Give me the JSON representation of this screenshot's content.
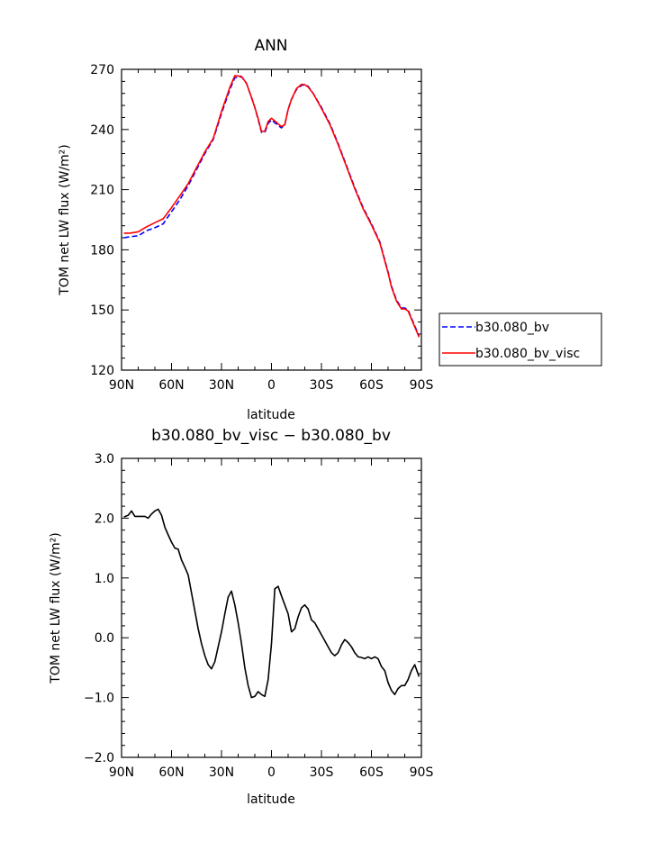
{
  "chart_data": [
    {
      "type": "line",
      "title": "ANN",
      "xlabel": "latitude",
      "ylabel": "TOM net LW flux (W/m²)",
      "ylim": [
        120,
        270
      ],
      "yticks": [
        "120",
        "150",
        "180",
        "210",
        "240",
        "270"
      ],
      "xlim": [
        90,
        -90
      ],
      "xtick_values": [
        90,
        60,
        30,
        0,
        -30,
        -60,
        -90
      ],
      "xtick_labels": [
        "90N",
        "60N",
        "30N",
        "0",
        "30S",
        "60S",
        "90S"
      ],
      "legend_position": "right",
      "series": [
        {
          "name": "b30.080_bv",
          "color": "#0000ff",
          "dash": "dashed",
          "x": [
            88.6,
            85,
            80,
            75,
            70,
            65,
            60,
            55,
            50,
            45,
            40,
            35,
            30,
            25,
            22,
            18,
            15,
            12,
            10,
            8,
            6,
            4,
            2,
            0,
            -2,
            -4,
            -6,
            -8,
            -10,
            -12,
            -15,
            -18,
            -20,
            -22,
            -25,
            -30,
            -35,
            -40,
            -45,
            -50,
            -55,
            -60,
            -65,
            -70,
            -72,
            -75,
            -78,
            -80,
            -82,
            -85,
            -88.6
          ],
          "y": [
            186,
            186.5,
            187,
            189.5,
            191,
            193,
            199,
            205,
            212,
            220,
            228,
            235,
            248,
            260,
            265.8,
            266.3,
            263,
            256,
            251,
            245,
            238.6,
            238.5,
            243,
            244.8,
            243.4,
            242,
            240.8,
            242.5,
            250,
            255,
            260,
            262,
            262.3,
            261.5,
            258,
            251,
            243,
            233,
            222,
            211,
            201,
            193,
            184,
            169,
            162,
            155,
            151,
            151,
            150,
            144,
            137
          ]
        },
        {
          "name": "b30.080_bv_visc",
          "color": "#ff0000",
          "dash": "solid",
          "x": [
            88.6,
            85,
            80,
            75,
            70,
            65,
            60,
            55,
            50,
            45,
            40,
            35,
            30,
            25,
            22,
            18,
            15,
            12,
            10,
            8,
            6,
            4,
            2,
            0,
            -2,
            -4,
            -6,
            -8,
            -10,
            -12,
            -15,
            -18,
            -20,
            -22,
            -25,
            -30,
            -35,
            -40,
            -45,
            -50,
            -55,
            -60,
            -65,
            -70,
            -72,
            -75,
            -78,
            -80,
            -82,
            -85,
            -88.6
          ],
          "y": [
            188.3,
            188.3,
            189,
            191.5,
            193.5,
            195.5,
            201,
            207,
            213,
            221,
            228.8,
            235.5,
            249,
            261,
            266.8,
            266.5,
            263,
            256,
            251,
            245.5,
            239,
            239.2,
            244,
            245.6,
            244.3,
            242.8,
            241.5,
            242.4,
            250,
            255,
            260.5,
            262.5,
            262.3,
            261.2,
            258,
            250.5,
            242.5,
            232.5,
            221.5,
            210.5,
            200.5,
            192.5,
            183.5,
            168.5,
            161.5,
            154.5,
            150.5,
            150.5,
            149.5,
            143.5,
            136.5
          ]
        }
      ]
    },
    {
      "type": "line",
      "title": "b30.080_bv_visc − b30.080_bv",
      "xlabel": "latitude",
      "ylabel": "TOM net LW flux (W/m²)",
      "ylim": [
        -2.0,
        3.0
      ],
      "yticks": [
        "−2.0",
        "−1.0",
        "0.0",
        "1.0",
        "2.0",
        "3.0"
      ],
      "xlim": [
        90,
        -90
      ],
      "xtick_values": [
        90,
        60,
        30,
        0,
        -30,
        -60,
        -90
      ],
      "xtick_labels": [
        "90N",
        "60N",
        "30N",
        "0",
        "30S",
        "60S",
        "90S"
      ],
      "series": [
        {
          "color": "#000000",
          "dash": "solid",
          "x": [
            88.6,
            86,
            84,
            82,
            80,
            78,
            76,
            74,
            72,
            70,
            68,
            66,
            64,
            62,
            60,
            58,
            56,
            54,
            52,
            50,
            48,
            46,
            44,
            42,
            40,
            38,
            36,
            34,
            32,
            30,
            28,
            26,
            24,
            22,
            20,
            18,
            16,
            14,
            12,
            10,
            8,
            6,
            4,
            2,
            0,
            -2,
            -4,
            -6,
            -8,
            -10,
            -12,
            -14,
            -16,
            -18,
            -20,
            -22,
            -24,
            -26,
            -28,
            -30,
            -32,
            -34,
            -36,
            -38,
            -40,
            -42,
            -44,
            -46,
            -48,
            -50,
            -52,
            -54,
            -56,
            -58,
            -60,
            -62,
            -64,
            -66,
            -68,
            -70,
            -72,
            -74,
            -76,
            -78,
            -80,
            -82,
            -84,
            -86,
            -88.6
          ],
          "y": [
            2.02,
            2.05,
            2.12,
            2.03,
            2.03,
            2.03,
            2.03,
            2.0,
            2.07,
            2.12,
            2.15,
            2.05,
            1.85,
            1.72,
            1.6,
            1.5,
            1.48,
            1.3,
            1.18,
            1.05,
            0.75,
            0.45,
            0.15,
            -0.1,
            -0.3,
            -0.45,
            -0.52,
            -0.4,
            -0.15,
            0.1,
            0.4,
            0.68,
            0.78,
            0.55,
            0.25,
            -0.1,
            -0.5,
            -0.8,
            -1.0,
            -0.98,
            -0.9,
            -0.95,
            -0.98,
            -0.7,
            -0.1,
            0.82,
            0.86,
            0.7,
            0.55,
            0.4,
            0.1,
            0.15,
            0.35,
            0.5,
            0.55,
            0.48,
            0.3,
            0.25,
            0.15,
            0.05,
            -0.05,
            -0.15,
            -0.25,
            -0.3,
            -0.25,
            -0.12,
            -0.03,
            -0.08,
            -0.15,
            -0.25,
            -0.32,
            -0.33,
            -0.35,
            -0.32,
            -0.35,
            -0.32,
            -0.35,
            -0.48,
            -0.55,
            -0.75,
            -0.88,
            -0.95,
            -0.85,
            -0.8,
            -0.8,
            -0.7,
            -0.55,
            -0.45,
            -0.65
          ]
        }
      ]
    }
  ]
}
